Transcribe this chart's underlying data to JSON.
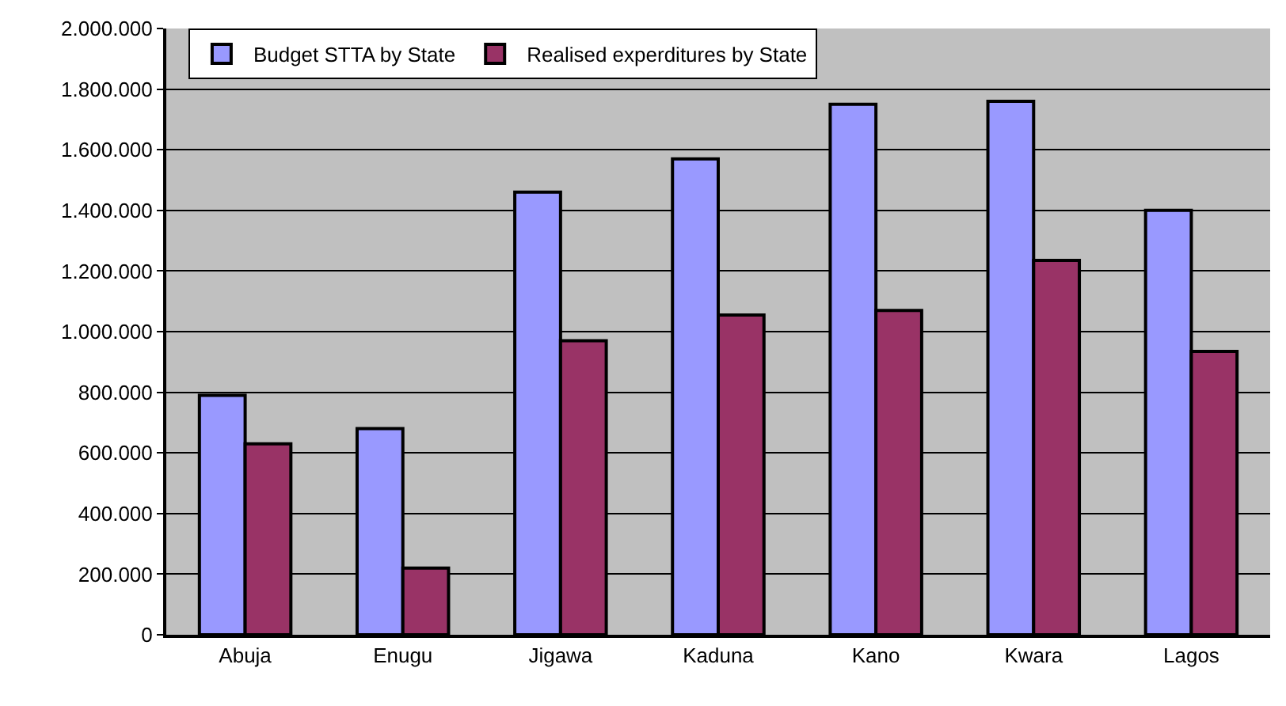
{
  "chart_data": {
    "type": "bar",
    "categories": [
      "Abuja",
      "Enugu",
      "Jigawa",
      "Kaduna",
      "Kano",
      "Kwara",
      "Lagos"
    ],
    "series": [
      {
        "name": "Budget STTA by State",
        "color": "#9999ff",
        "values": [
          790000,
          680000,
          1460000,
          1570000,
          1750000,
          1760000,
          1400000
        ]
      },
      {
        "name": "Realised experditures by State",
        "color": "#993366",
        "values": [
          630000,
          220000,
          970000,
          1055000,
          1070000,
          1235000,
          935000
        ]
      }
    ],
    "ylim": [
      0,
      2000000
    ],
    "yticks": [
      {
        "value": 0,
        "label": "0"
      },
      {
        "value": 200000,
        "label": "200.000"
      },
      {
        "value": 400000,
        "label": "400.000"
      },
      {
        "value": 600000,
        "label": "600.000"
      },
      {
        "value": 800000,
        "label": "800.000"
      },
      {
        "value": 1000000,
        "label": "1.000.000"
      },
      {
        "value": 1200000,
        "label": "1.200.000"
      },
      {
        "value": 1400000,
        "label": "1.400.000"
      },
      {
        "value": 1600000,
        "label": "1.600.000"
      },
      {
        "value": 1800000,
        "label": "1.800.000"
      },
      {
        "value": 2000000,
        "label": "2.000.000"
      }
    ],
    "grid": "y",
    "legend": "top left"
  }
}
